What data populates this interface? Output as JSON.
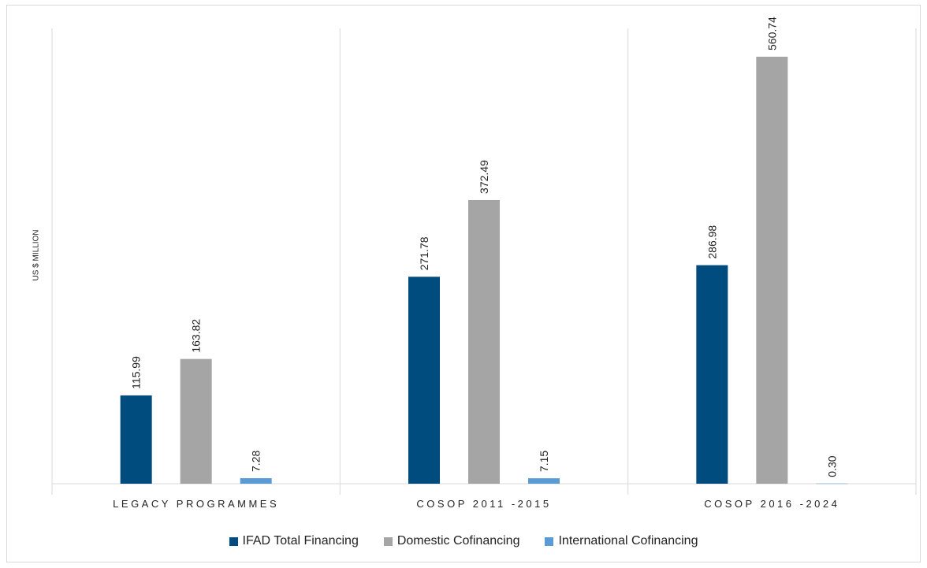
{
  "chart_data": {
    "type": "bar",
    "ylabel": "US $ MILLION",
    "categories": [
      "LEGACY PROGRAMMES",
      "COSOP 2011 -2015",
      "COSOP 2016 -2024"
    ],
    "series": [
      {
        "name": "IFAD Total Financing",
        "color": "#004c7f",
        "values": [
          115.99,
          271.78,
          286.98
        ],
        "labels": [
          "115.99",
          "271.78",
          "286.98"
        ]
      },
      {
        "name": "Domestic Cofinancing",
        "color": "#a5a5a5",
        "values": [
          163.82,
          372.49,
          560.74
        ],
        "labels": [
          "163.82",
          "372.49",
          "560.74"
        ]
      },
      {
        "name": "International Cofinancing",
        "color": "#5b9bd5",
        "values": [
          7.28,
          7.15,
          0.3
        ],
        "labels": [
          "7.28",
          "7.15",
          "0.30"
        ]
      }
    ],
    "ylim": [
      0,
      600
    ],
    "grid": false,
    "legend_position": "bottom"
  }
}
